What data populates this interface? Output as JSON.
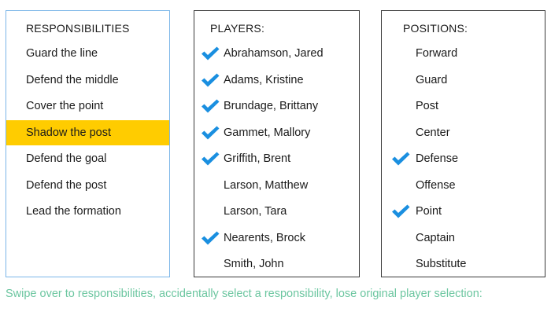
{
  "responsibilities": {
    "header": "RESPONSIBILITIES",
    "items": [
      {
        "label": "Guard the line",
        "highlighted": false
      },
      {
        "label": "Defend the middle",
        "highlighted": false
      },
      {
        "label": "Cover the point",
        "highlighted": false
      },
      {
        "label": "Shadow the post",
        "highlighted": true
      },
      {
        "label": "Defend the goal",
        "highlighted": false
      },
      {
        "label": "Defend the post",
        "highlighted": false
      },
      {
        "label": "Lead the formation",
        "highlighted": false
      }
    ]
  },
  "players": {
    "header": "PLAYERS:",
    "items": [
      {
        "label": "Abrahamson, Jared",
        "checked": true
      },
      {
        "label": "Adams, Kristine",
        "checked": true
      },
      {
        "label": "Brundage, Brittany",
        "checked": true
      },
      {
        "label": "Gammet, Mallory",
        "checked": true
      },
      {
        "label": "Griffith, Brent",
        "checked": true
      },
      {
        "label": "Larson, Matthew",
        "checked": false
      },
      {
        "label": "Larson, Tara",
        "checked": false
      },
      {
        "label": "Nearents, Brock",
        "checked": true
      },
      {
        "label": "Smith, John",
        "checked": false
      }
    ]
  },
  "positions": {
    "header": "POSITIONS:",
    "items": [
      {
        "label": "Forward",
        "checked": false
      },
      {
        "label": "Guard",
        "checked": false
      },
      {
        "label": "Post",
        "checked": false
      },
      {
        "label": "Center",
        "checked": false
      },
      {
        "label": "Defense",
        "checked": true
      },
      {
        "label": "Offense",
        "checked": false
      },
      {
        "label": "Point",
        "checked": true
      },
      {
        "label": "Captain",
        "checked": false
      },
      {
        "label": "Substitute",
        "checked": false
      }
    ]
  },
  "caption": "Swipe over to responsibilities, accidentally select a responsibility, lose original player selection:",
  "colors": {
    "highlight": "#ffcc00",
    "check": "#1a8fe0",
    "caption": "#6cc6a0",
    "active_border": "#7bb6e8"
  },
  "icons": {
    "check": "checkmark-icon"
  }
}
